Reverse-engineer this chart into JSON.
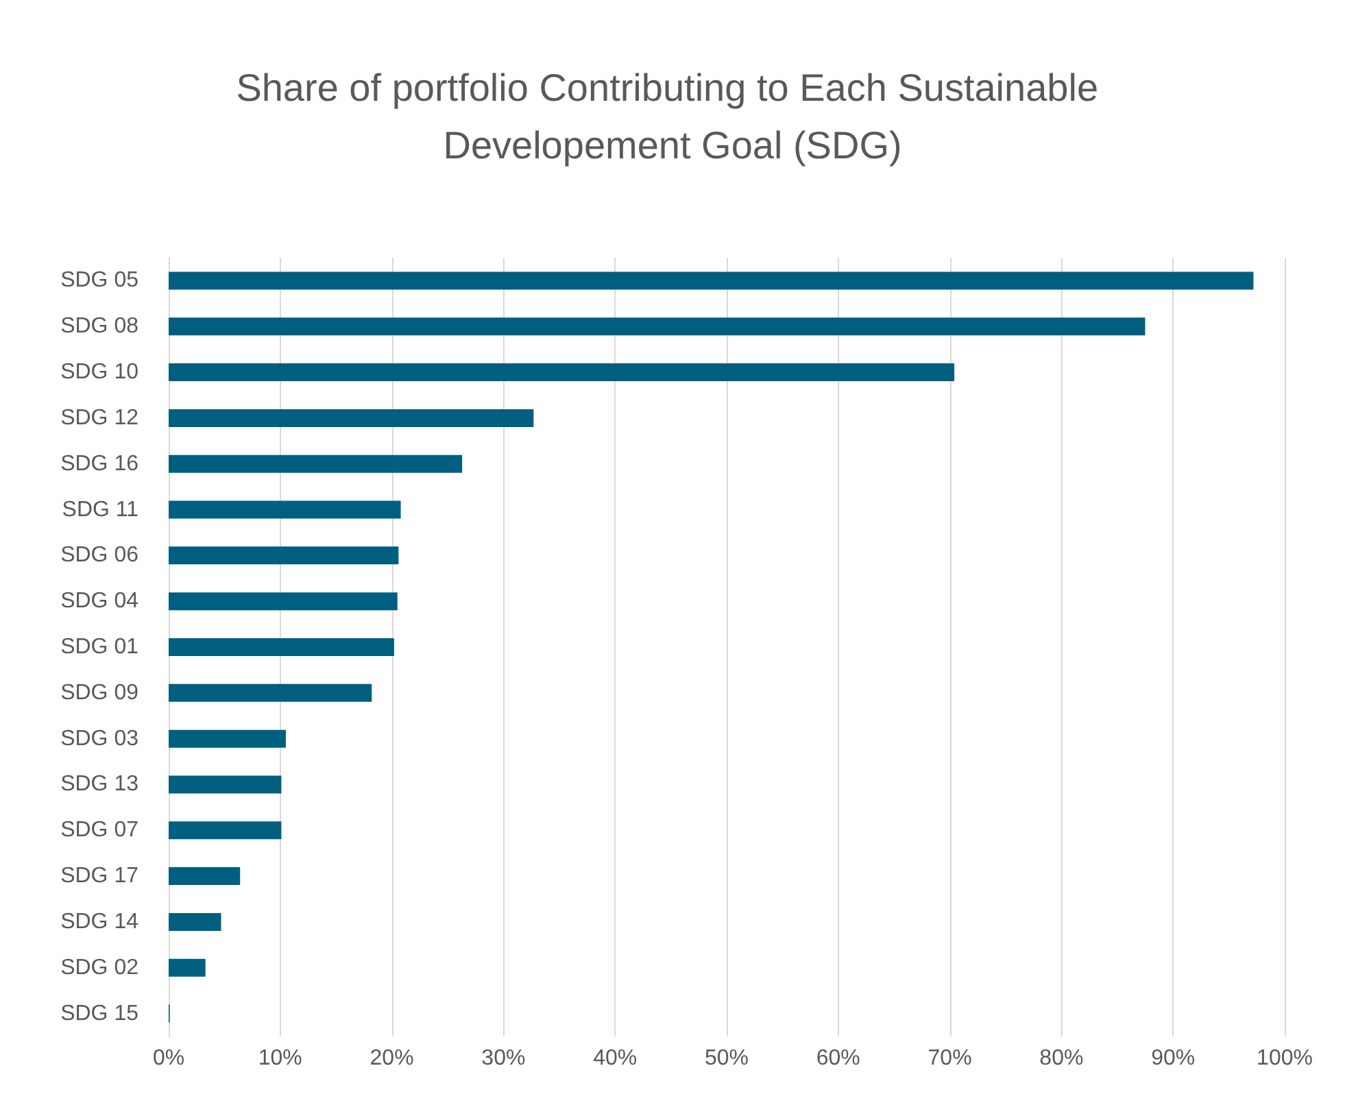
{
  "chart_data": {
    "type": "bar",
    "orientation": "horizontal",
    "title": "Share of portfolio Contributing to Each Sustainable Developement Goal (SDG)",
    "categories": [
      "SDG 05",
      "SDG 08",
      "SDG 10",
      "SDG 12",
      "SDG 16",
      "SDG 11",
      "SDG 06",
      "SDG 04",
      "SDG 01",
      "SDG 09",
      "SDG 03",
      "SDG 13",
      "SDG 07",
      "SDG 17",
      "SDG 14",
      "SDG 02",
      "SDG 15"
    ],
    "values": [
      97.2,
      87.5,
      70.4,
      32.7,
      26.3,
      20.8,
      20.6,
      20.5,
      20.2,
      18.2,
      10.5,
      10.1,
      10.1,
      6.4,
      4.7,
      3.3,
      0.1
    ],
    "color": "#005f7f",
    "xlim": [
      0,
      100
    ],
    "xticks": [
      {
        "value": 0,
        "label": "0%"
      },
      {
        "value": 10,
        "label": "10%"
      },
      {
        "value": 20,
        "label": "20%"
      },
      {
        "value": 30,
        "label": "30%"
      },
      {
        "value": 40,
        "label": "40%"
      },
      {
        "value": 50,
        "label": "50%"
      },
      {
        "value": 60,
        "label": "60%"
      },
      {
        "value": 70,
        "label": "70%"
      },
      {
        "value": 80,
        "label": "80%"
      },
      {
        "value": 90,
        "label": "90%"
      },
      {
        "value": 100,
        "label": "100%"
      }
    ],
    "grid": "x"
  }
}
